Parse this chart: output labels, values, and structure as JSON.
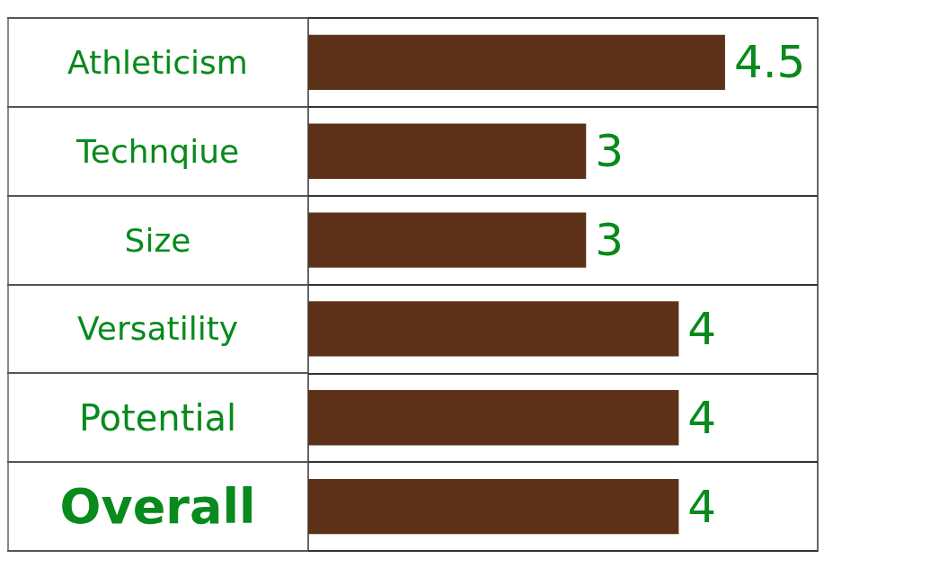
{
  "chart_data": {
    "type": "bar",
    "orientation": "horizontal",
    "categories": [
      "Athleticism",
      "Technqiue",
      "Size",
      "Versatility",
      "Potential",
      "Overall"
    ],
    "values": [
      4.5,
      3,
      3,
      4,
      4,
      4
    ],
    "color": "#5c3118",
    "xlim": [
      0,
      5.5
    ],
    "tick_labels": "y",
    "grid": "y",
    "data_labels": true
  }
}
